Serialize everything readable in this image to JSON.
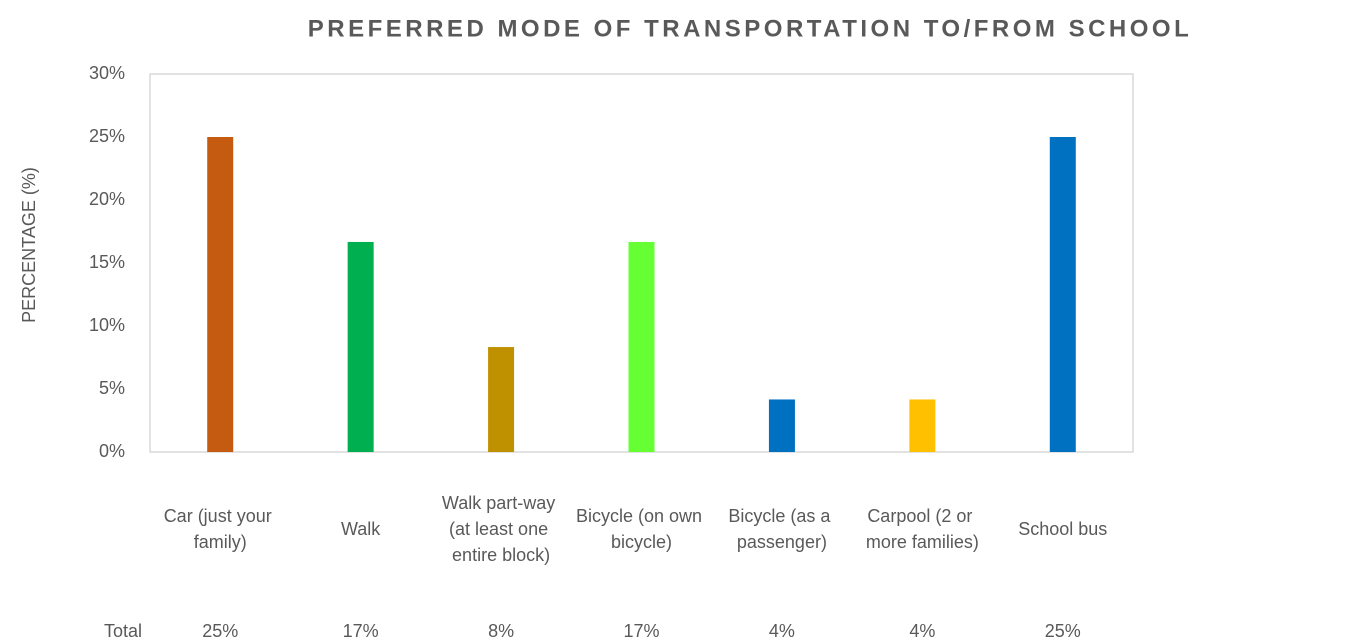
{
  "chart_data": {
    "type": "bar",
    "title": "PREFERRED MODE OF TRANSPORTATION TO/FROM SCHOOL",
    "y_label": "PERCENTAGE (%)",
    "categories": [
      "Car (just your family)",
      "Walk",
      "Walk part-way (at least one entire block)",
      "Bicycle (on own bicycle)",
      "Bicycle (as a passenger)",
      "Carpool (2 or more families)",
      "School bus"
    ],
    "series": [
      {
        "name": "Total",
        "values": [
          25,
          16.67,
          8.33,
          16.67,
          4.17,
          4.17,
          25
        ],
        "value_labels": [
          "25%",
          "17%",
          "8%",
          "17%",
          "4%",
          "4%",
          "25%"
        ],
        "colors": [
          "#c55a11",
          "#00b050",
          "#bf9000",
          "#66ff33",
          "#0070c0",
          "#ffc000",
          "#0070c0"
        ]
      }
    ],
    "ylim": [
      0,
      30
    ],
    "yticks": [
      {
        "value": 0,
        "label": "0%"
      },
      {
        "value": 5,
        "label": "5%"
      },
      {
        "value": 10,
        "label": "10%"
      },
      {
        "value": 15,
        "label": "15%"
      },
      {
        "value": 20,
        "label": "20%"
      },
      {
        "value": 25,
        "label": "25%"
      },
      {
        "value": 30,
        "label": "30%"
      }
    ],
    "grid": false
  }
}
